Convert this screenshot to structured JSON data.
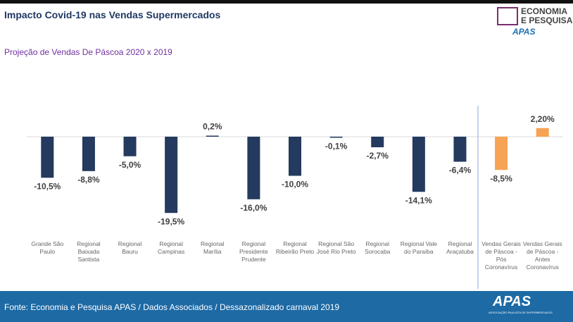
{
  "header": {
    "title": "Impacto Covid-19 nas Vendas Supermercados",
    "logo": {
      "line1": "ECONOMIA",
      "line2": "E PESQUISA",
      "brand": "APAS"
    }
  },
  "chart_data": {
    "type": "bar",
    "title": "Projeção de Vendas De Páscoa 2020 x 2019",
    "categories": [
      "Grande São Paulo",
      "Regional Baixada Santista",
      "Regional Bauru",
      "Regional Campinas",
      "Regional Marília",
      "Regional Presidente Prudente",
      "Regional Ribeirão Preto",
      "Regional São José Rio Preto",
      "Regional Sorocaba",
      "Regional Vale do Paraíba",
      "Regional Araçatuba",
      "Vendas Gerais de Páscoa - Pós Coronavírus",
      "Vendas Gerais de Páscoa - Antes Coronavírus"
    ],
    "values": [
      -10.5,
      -8.8,
      -5.0,
      -19.5,
      0.2,
      -16.0,
      -10.0,
      -0.1,
      -2.7,
      -14.1,
      -6.4,
      -8.5,
      2.2
    ],
    "value_labels": [
      "-10,5%",
      "-8,8%",
      "-5,0%",
      "-19,5%",
      "0,2%",
      "-16,0%",
      "-10,0%",
      "-0,1%",
      "-2,7%",
      "-14,1%",
      "-6,4%",
      "-8,5%",
      "2,20%"
    ],
    "colors": [
      "#243a5e",
      "#243a5e",
      "#243a5e",
      "#243a5e",
      "#243a5e",
      "#243a5e",
      "#243a5e",
      "#243a5e",
      "#243a5e",
      "#243a5e",
      "#243a5e",
      "#f6a353",
      "#f6a353"
    ]
  },
  "footer": {
    "source": "Fonte: Economia e Pesquisa APAS / Dados Associados / Dessazonalizado carnaval 2019",
    "brand": "APAS",
    "brand_sub": "ASSOCIAÇÃO PAULISTA DE SUPERMERCADOS"
  }
}
